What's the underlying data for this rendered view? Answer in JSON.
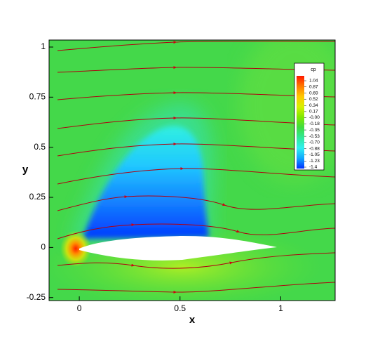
{
  "chart_data": {
    "type": "contour",
    "x_label": "x",
    "y_label": "y",
    "xlim": [
      -0.15,
      1.27
    ],
    "ylim": [
      -0.265,
      1.035
    ],
    "xticks": [
      0,
      0.5,
      1
    ],
    "yticks": [
      -0.25,
      0,
      0.25,
      0.5,
      0.75,
      1
    ],
    "legend": {
      "title": "cp",
      "position": "upper right",
      "levels": [
        1.04,
        0.87,
        0.69,
        0.52,
        0.34,
        0.17,
        {
          "value": 0,
          "label": "-0.00"
        },
        -0.18,
        -0.35,
        -0.53,
        {
          "value": -0.7,
          "label": "-0.70"
        },
        -0.88,
        -1.05,
        -1.23,
        -1.4
      ]
    },
    "colormap": [
      "#ff1800",
      "#ff7a00",
      "#ffc800",
      "#d8f000",
      "#80e800",
      "#40dc40",
      "#30e898",
      "#30f0f0",
      "#10a8ff",
      "#0030ff"
    ]
  }
}
